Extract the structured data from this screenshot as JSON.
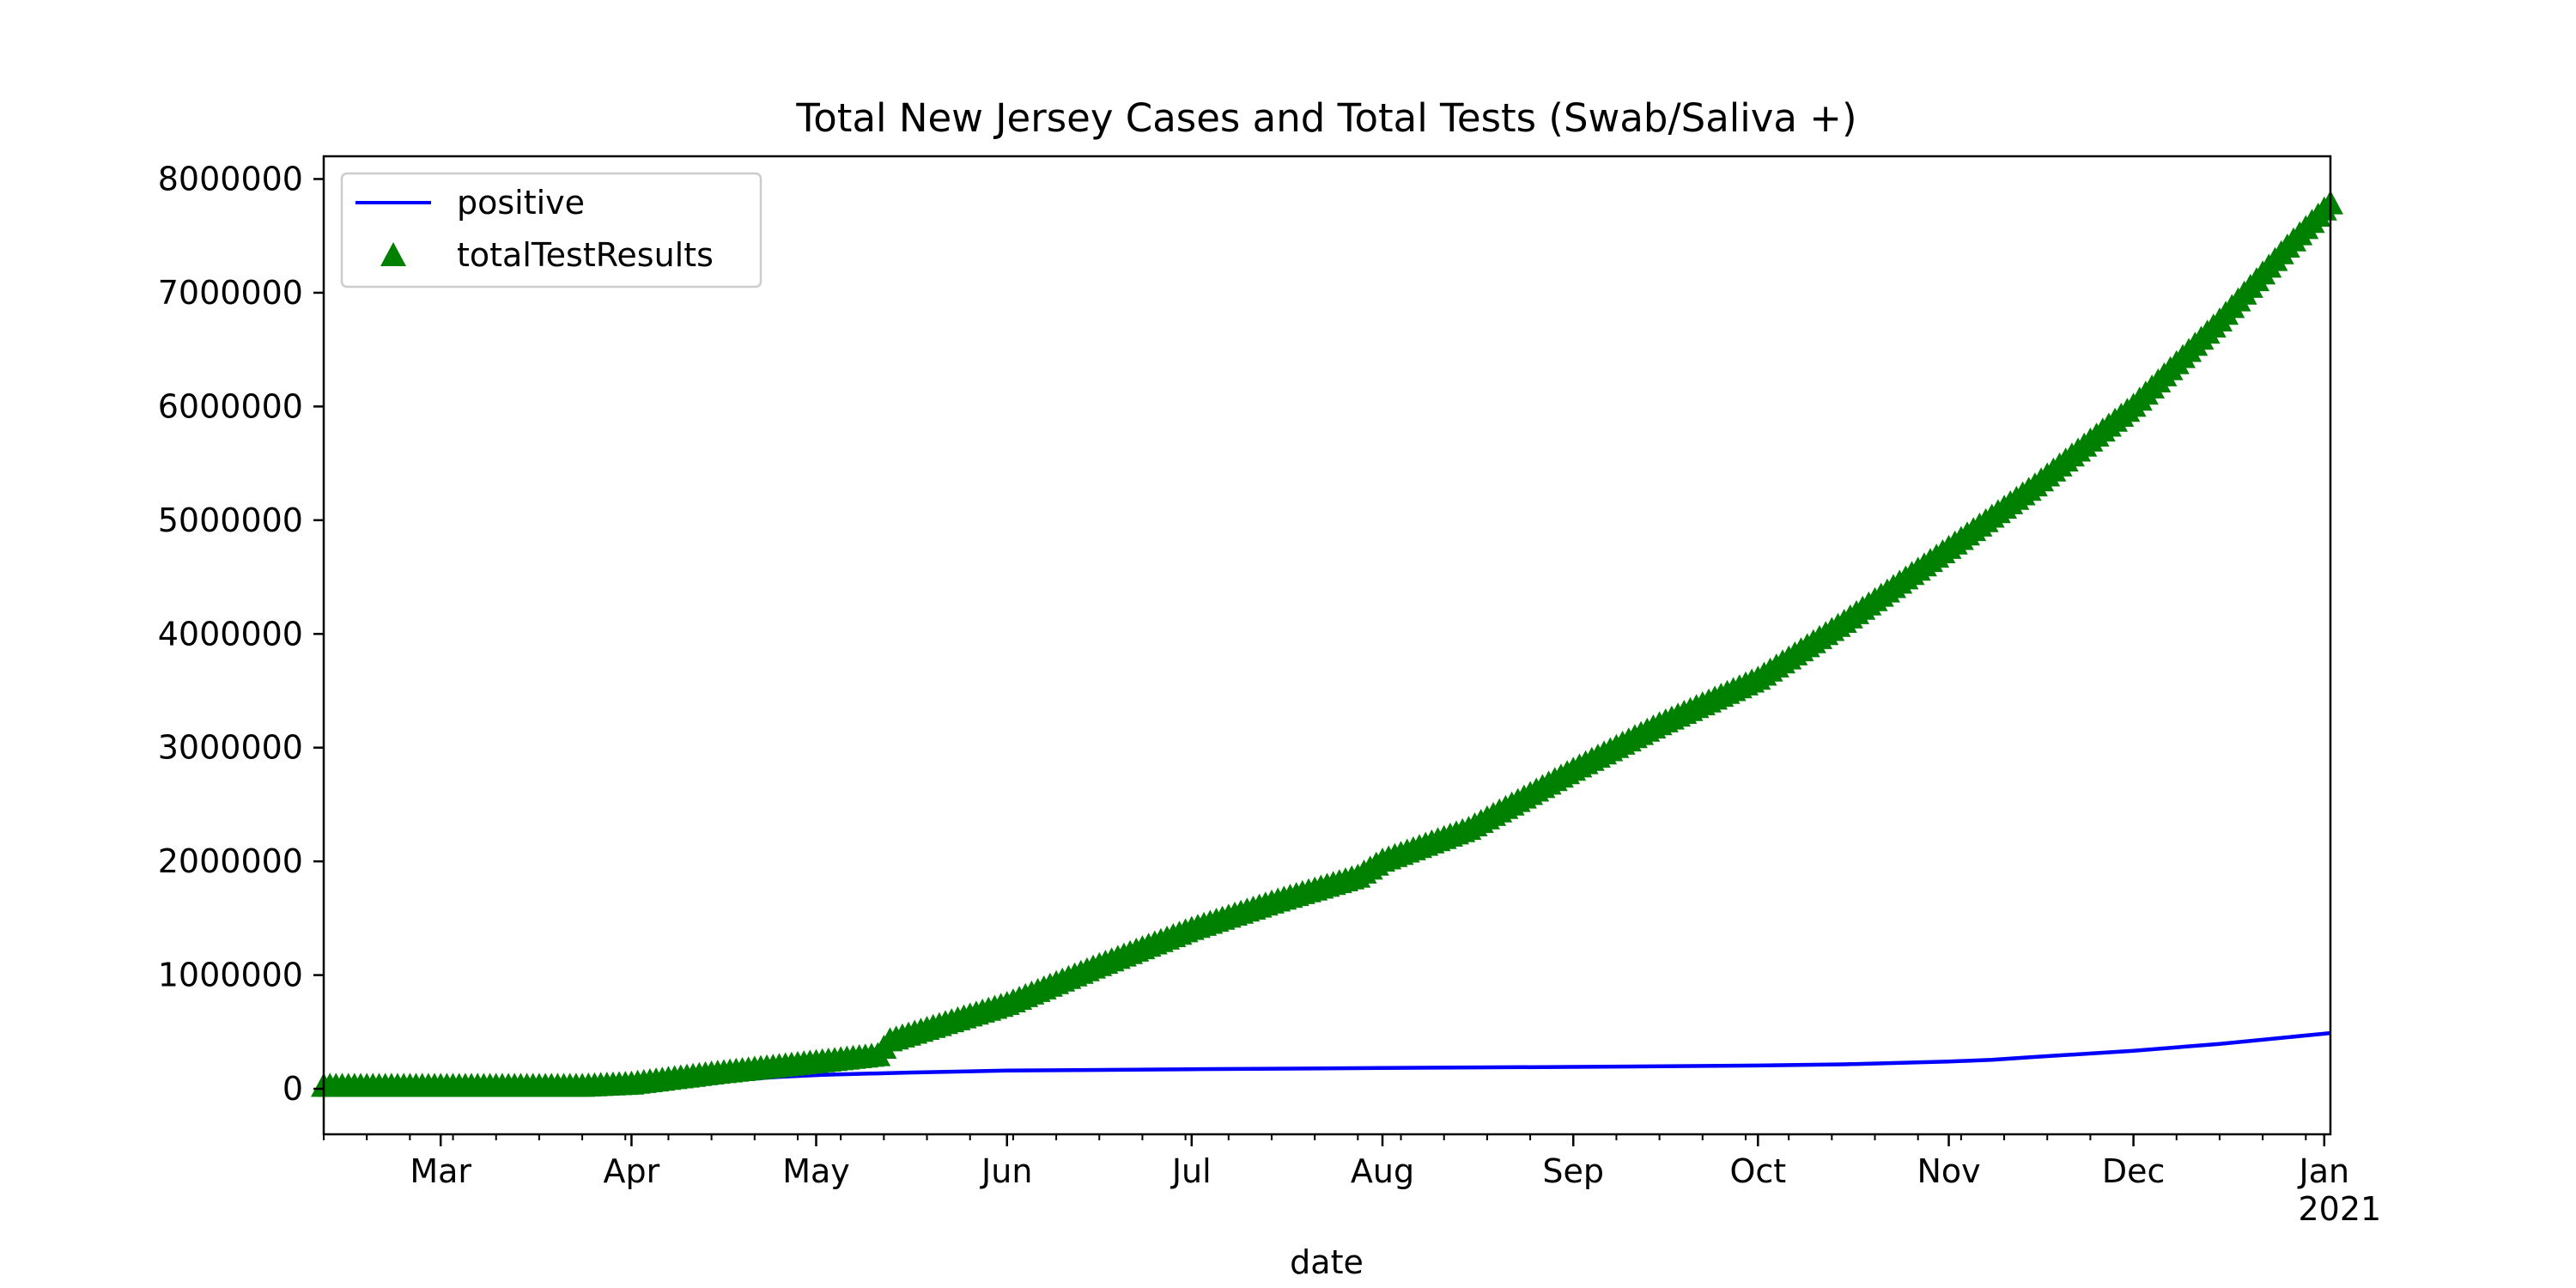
{
  "chart_data": {
    "type": "line",
    "title": "Total New Jersey Cases and Total Tests (Swab/Saliva +)",
    "xlabel": "date",
    "ylabel": "",
    "xlim": [
      "2020-02-11",
      "2021-01-02"
    ],
    "ylim": [
      -400000,
      8200000
    ],
    "yticks": [
      0,
      1000000,
      2000000,
      3000000,
      4000000,
      5000000,
      6000000,
      7000000,
      8000000
    ],
    "ytick_labels": [
      "0",
      "1000000",
      "2000000",
      "3000000",
      "4000000",
      "5000000",
      "6000000",
      "7000000",
      "8000000"
    ],
    "xticks": [
      {
        "date": "2020-03-01",
        "label": "Mar"
      },
      {
        "date": "2020-04-01",
        "label": "Apr"
      },
      {
        "date": "2020-05-01",
        "label": "May"
      },
      {
        "date": "2020-06-01",
        "label": "Jun"
      },
      {
        "date": "2020-07-01",
        "label": "Jul"
      },
      {
        "date": "2020-08-01",
        "label": "Aug"
      },
      {
        "date": "2020-09-01",
        "label": "Sep"
      },
      {
        "date": "2020-10-01",
        "label": "Oct"
      },
      {
        "date": "2020-11-01",
        "label": "Nov"
      },
      {
        "date": "2020-12-01",
        "label": "Dec"
      },
      {
        "date": "2021-01-01",
        "label": "Jan",
        "sublabel": "2021"
      }
    ],
    "minor_xtick_interval_days": 7,
    "grid": false,
    "legend": "top-left",
    "series": [
      {
        "name": "positive",
        "kind": "line",
        "color": "#0000ff",
        "points": [
          [
            "2020-02-11",
            0
          ],
          [
            "2020-03-04",
            0
          ],
          [
            "2020-03-14",
            100
          ],
          [
            "2020-03-21",
            1900
          ],
          [
            "2020-03-28",
            11000
          ],
          [
            "2020-04-04",
            34000
          ],
          [
            "2020-04-11",
            58000
          ],
          [
            "2020-04-18",
            78000
          ],
          [
            "2020-04-25",
            105000
          ],
          [
            "2020-05-02",
            123000
          ],
          [
            "2020-05-16",
            143000
          ],
          [
            "2020-06-01",
            160000
          ],
          [
            "2020-07-01",
            172000
          ],
          [
            "2020-08-01",
            183000
          ],
          [
            "2020-09-01",
            193000
          ],
          [
            "2020-10-01",
            205000
          ],
          [
            "2020-10-15",
            215000
          ],
          [
            "2020-11-01",
            240000
          ],
          [
            "2020-11-08",
            255000
          ],
          [
            "2020-11-15",
            280000
          ],
          [
            "2020-12-01",
            335000
          ],
          [
            "2020-12-15",
            395000
          ],
          [
            "2021-01-02",
            490000
          ]
        ]
      },
      {
        "name": "totalTestResults",
        "kind": "scatter",
        "marker": "triangle-up",
        "color": "#008000",
        "points": [
          [
            "2020-03-24",
            20000
          ],
          [
            "2020-04-01",
            40000
          ],
          [
            "2020-04-15",
            135000
          ],
          [
            "2020-05-01",
            230000
          ],
          [
            "2020-05-11",
            290000
          ],
          [
            "2020-05-13",
            420000
          ],
          [
            "2020-06-01",
            740000
          ],
          [
            "2020-06-15",
            1060000
          ],
          [
            "2020-07-01",
            1400000
          ],
          [
            "2020-07-15",
            1650000
          ],
          [
            "2020-07-28",
            1860000
          ],
          [
            "2020-08-01",
            2000000
          ],
          [
            "2020-08-15",
            2280000
          ],
          [
            "2020-09-01",
            2800000
          ],
          [
            "2020-09-15",
            3200000
          ],
          [
            "2020-10-01",
            3600000
          ],
          [
            "2020-10-15",
            4100000
          ],
          [
            "2020-11-01",
            4750000
          ],
          [
            "2020-11-15",
            5300000
          ],
          [
            "2020-12-01",
            6000000
          ],
          [
            "2020-12-15",
            6750000
          ],
          [
            "2020-12-26",
            7400000
          ],
          [
            "2021-01-02",
            7780000
          ]
        ]
      }
    ]
  }
}
